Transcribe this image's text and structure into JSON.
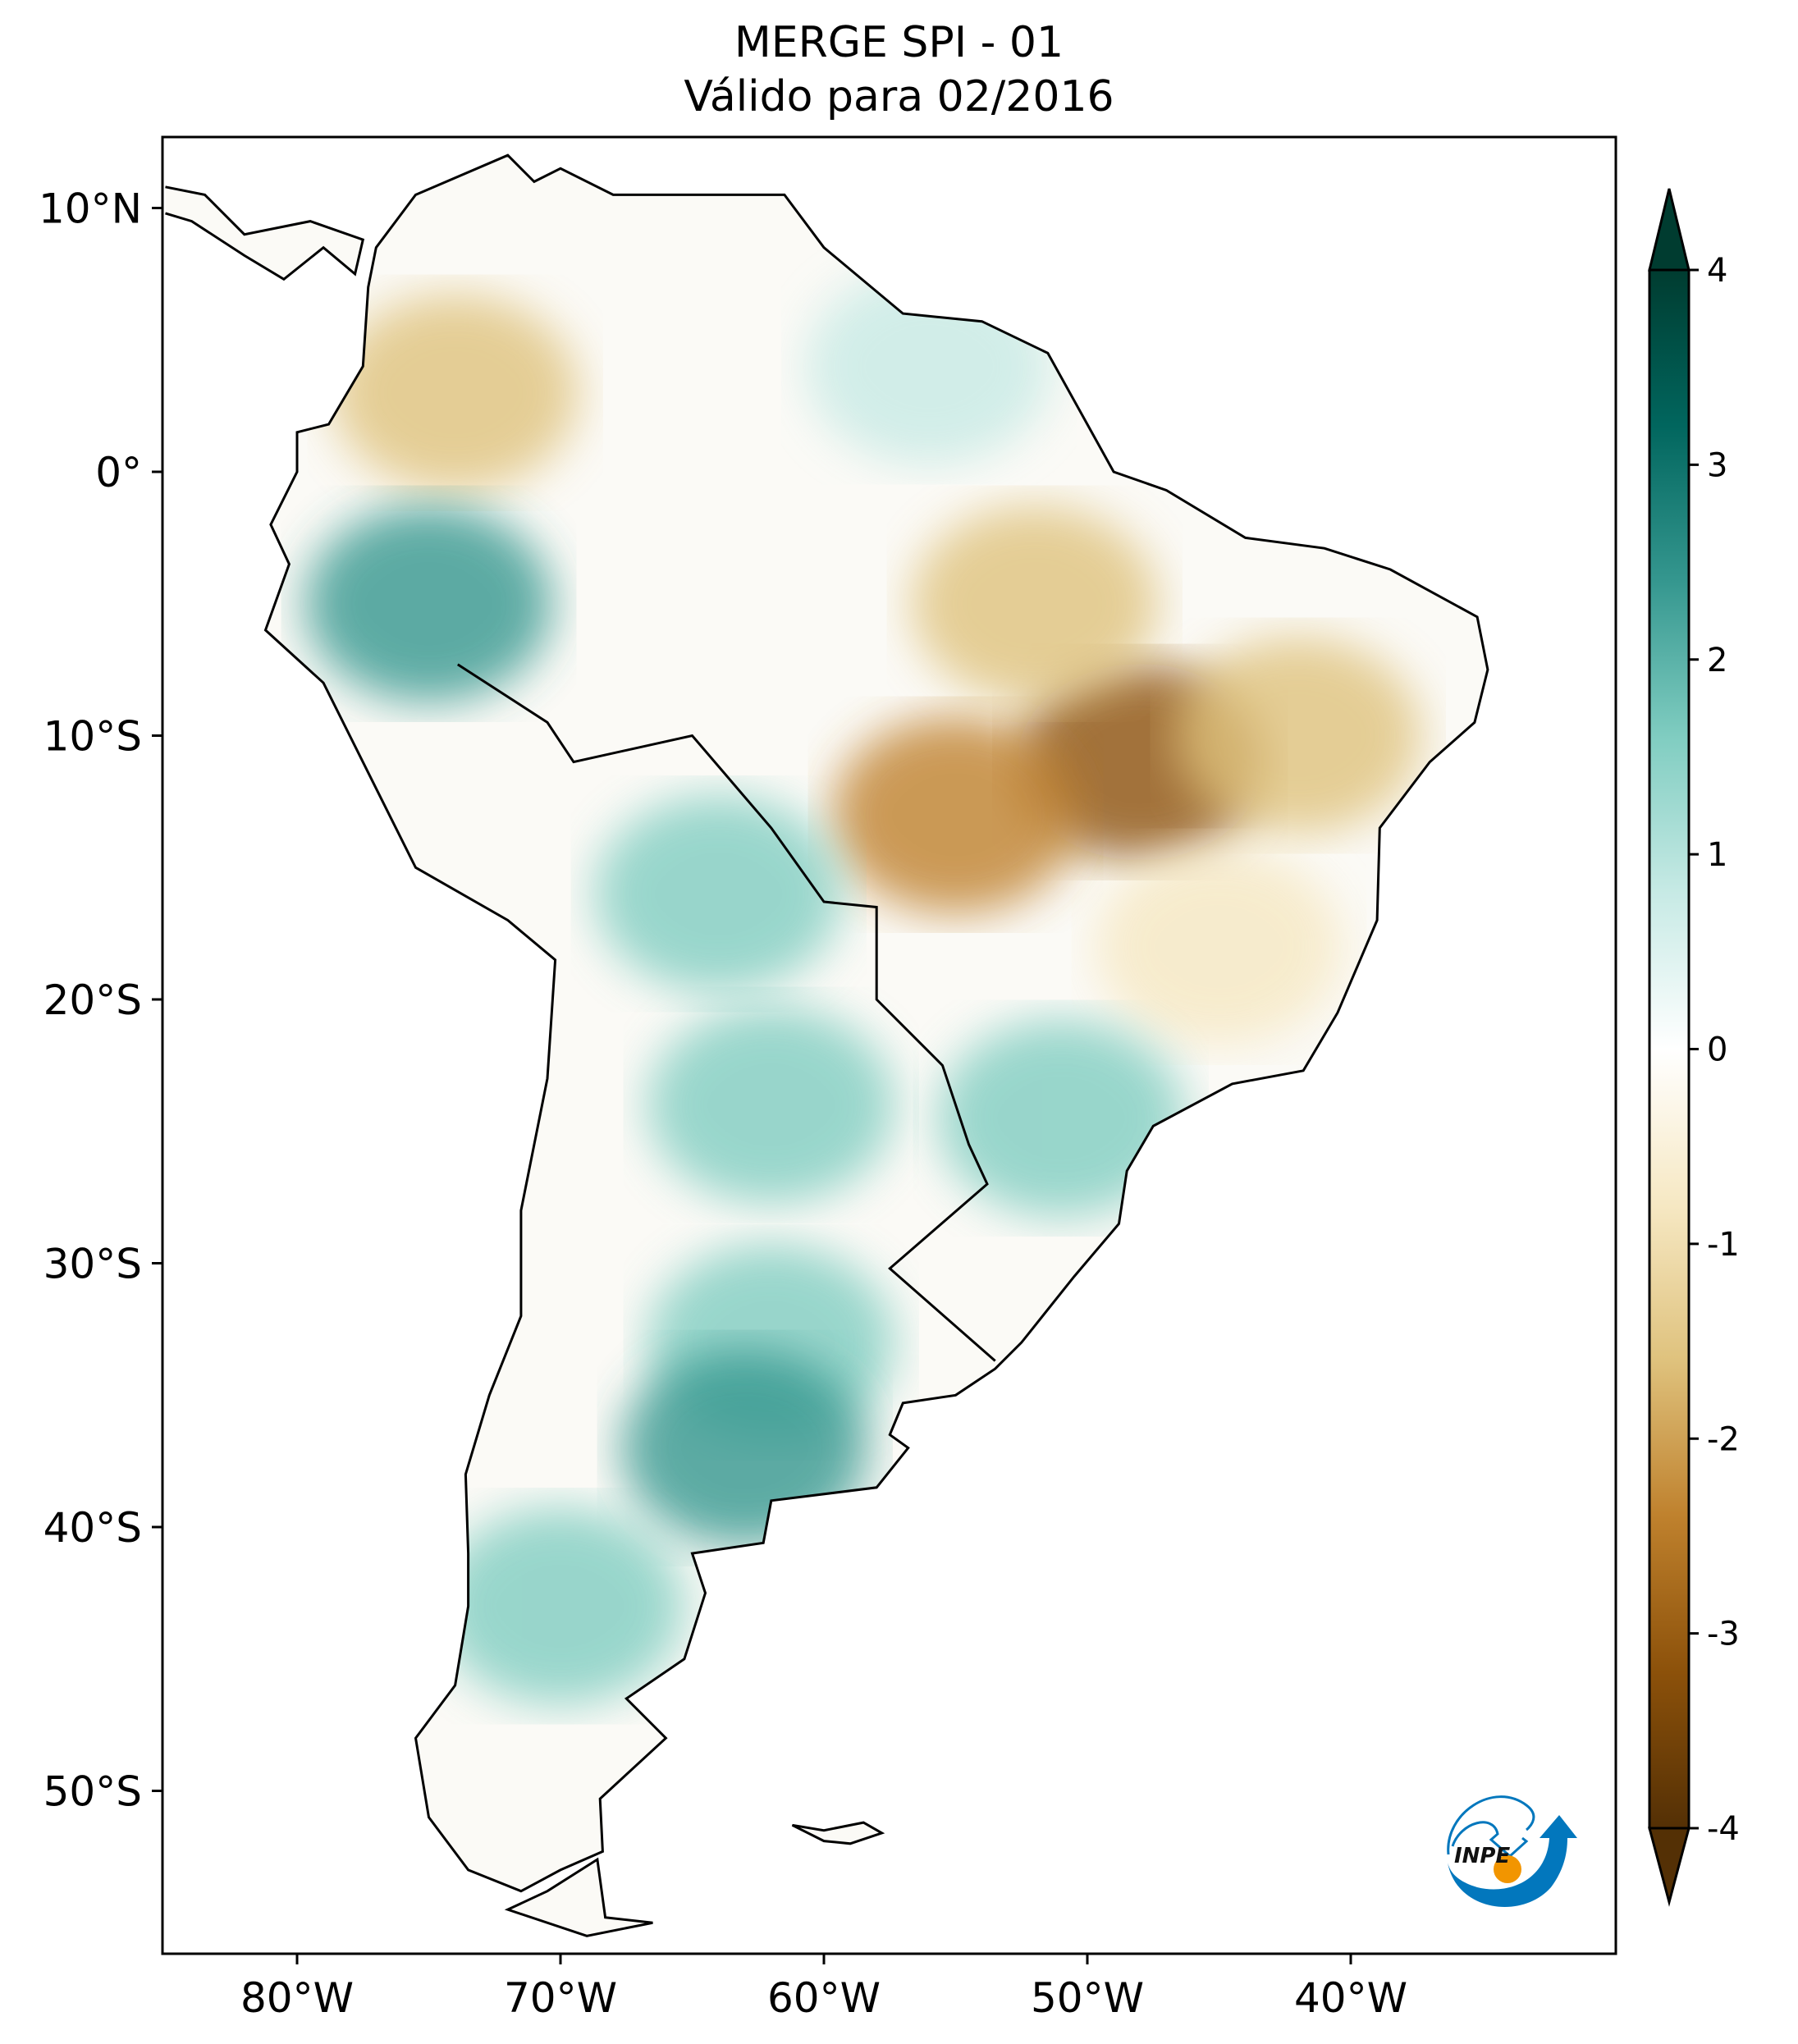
{
  "title": {
    "line1": "MERGE   SPI - 01",
    "line2": "Válido para 02/2016"
  },
  "chart_data": {
    "type": "heatmap",
    "variable": "SPI - 01",
    "period": "02/2016",
    "lon_range": [
      -85,
      -30
    ],
    "lat_range": [
      -56,
      12.7
    ],
    "x_ticks": [
      {
        "value": -80,
        "label": "80°W"
      },
      {
        "value": -70,
        "label": "70°W"
      },
      {
        "value": -60,
        "label": "60°W"
      },
      {
        "value": -50,
        "label": "50°W"
      },
      {
        "value": -40,
        "label": "40°W"
      }
    ],
    "y_ticks": [
      {
        "value": 10,
        "label": "10°N"
      },
      {
        "value": 0,
        "label": "0°"
      },
      {
        "value": -10,
        "label": "10°S"
      },
      {
        "value": -20,
        "label": "20°S"
      },
      {
        "value": -30,
        "label": "30°S"
      },
      {
        "value": -40,
        "label": "40°S"
      },
      {
        "value": -50,
        "label": "50°S"
      }
    ],
    "colorbar": {
      "colormap": "BrBG",
      "range": [
        -4,
        4
      ],
      "extend": "both",
      "ticks": [
        {
          "value": 4,
          "label": "4"
        },
        {
          "value": 3,
          "label": "3"
        },
        {
          "value": 2,
          "label": "2"
        },
        {
          "value": 1,
          "label": "1"
        },
        {
          "value": 0,
          "label": "0"
        },
        {
          "value": -1,
          "label": "-1"
        },
        {
          "value": -2,
          "label": "-2"
        },
        {
          "value": -3,
          "label": "-3"
        },
        {
          "value": -4,
          "label": "-4"
        }
      ],
      "colors": [
        "#543005",
        "#8c510a",
        "#bf812d",
        "#dfc27d",
        "#f6e8c3",
        "#ffffff",
        "#c7eae5",
        "#80cdc1",
        "#35978f",
        "#01665e",
        "#003c30"
      ]
    },
    "regions": [
      {
        "lon": -48,
        "lat": -11,
        "spi": -3.0
      },
      {
        "lon": -55,
        "lat": -13,
        "spi": -2.2
      },
      {
        "lon": -52,
        "lat": -5,
        "spi": -2.0
      },
      {
        "lon": -42,
        "lat": -10,
        "spi": -1.5
      },
      {
        "lon": -45,
        "lat": -18,
        "spi": -1.2
      },
      {
        "lon": -74,
        "lat": 3,
        "spi": -1.5
      },
      {
        "lon": -75,
        "lat": -5,
        "spi": 2.2
      },
      {
        "lon": -62,
        "lat": -33,
        "spi": 1.8
      },
      {
        "lon": -63,
        "lat": -37,
        "spi": 2.0
      },
      {
        "lon": -62,
        "lat": -24,
        "spi": 1.5
      },
      {
        "lon": -51,
        "lat": -24.5,
        "spi": 1.6
      },
      {
        "lon": -70,
        "lat": -43,
        "spi": 1.8
      },
      {
        "lon": -64,
        "lat": -16,
        "spi": 1.2
      },
      {
        "lon": -56,
        "lat": 4,
        "spi": 0.8
      }
    ]
  },
  "logo": {
    "text": "INPE"
  }
}
